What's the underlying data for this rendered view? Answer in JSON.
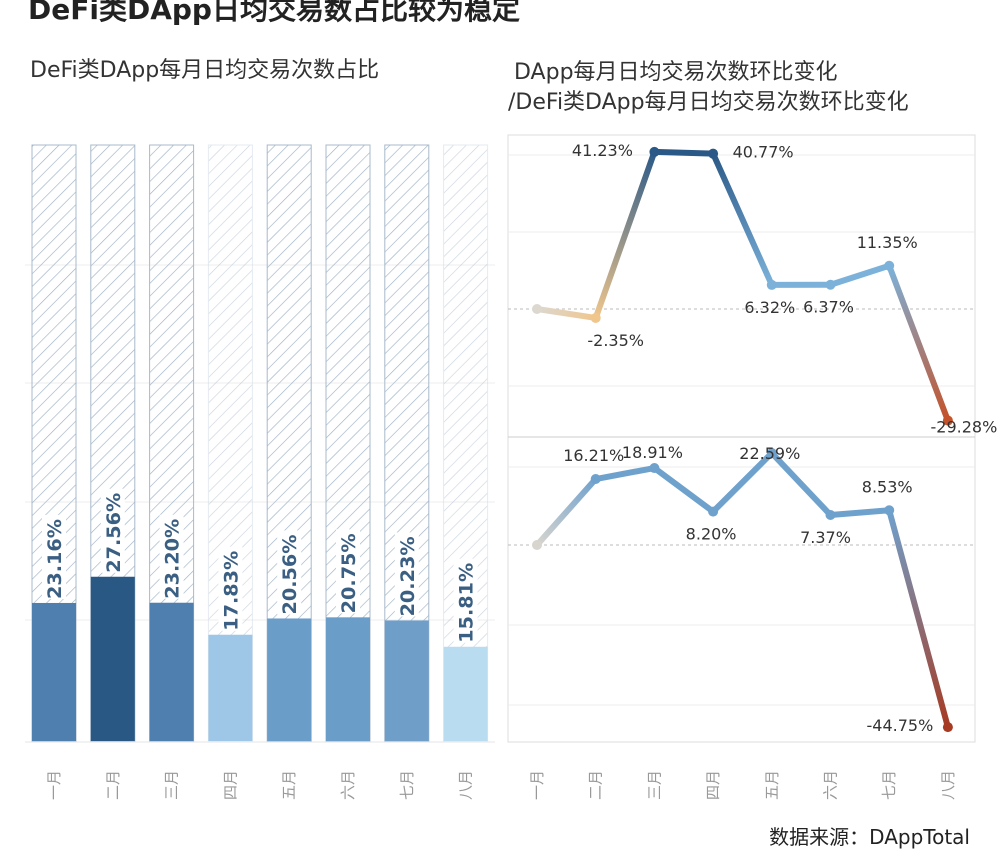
{
  "title": "DeFi类DApp日均交易数占比较为稳定",
  "source": "数据来源：DAppTotal",
  "chart_data": [
    {
      "type": "bar",
      "title": "DeFi类DApp每月日均交易次数占比",
      "categories": [
        "一月",
        "二月",
        "三月",
        "四月",
        "五月",
        "六月",
        "七月",
        "八月"
      ],
      "values": [
        23.16,
        27.56,
        23.2,
        17.83,
        20.56,
        20.75,
        20.23,
        15.81
      ],
      "labels": [
        "23.16%",
        "27.56%",
        "23.20%",
        "17.83%",
        "20.56%",
        "20.75%",
        "20.23%",
        "15.81%"
      ],
      "colors": [
        "#4f7fae",
        "#2a5885",
        "#4f7fae",
        "#9ec6e6",
        "#6a9dc8",
        "#6a9dc8",
        "#6f9fc9",
        "#b9dcf0"
      ],
      "ylim": [
        0,
        100
      ],
      "unit": "%"
    },
    {
      "type": "line",
      "title_lines": [
        "DApp每月日均交易次数环比变化",
        "/DeFi类DApp每月日均交易次数环比变化"
      ],
      "categories": [
        "一月",
        "二月",
        "三月",
        "四月",
        "五月",
        "六月",
        "七月",
        "八月"
      ],
      "series": [
        {
          "name": "DApp每月日均交易次数环比变化",
          "values": [
            0,
            -2.35,
            41.23,
            40.77,
            6.32,
            6.37,
            11.35,
            -29.28
          ],
          "labels": [
            "",
            "-2.35%",
            "41.23%",
            "40.77%",
            "6.32%",
            "6.37%",
            "11.35%",
            "-29.28%"
          ],
          "colors": [
            "#dcd8d0",
            "#f0c68c",
            "#2b5987",
            "#2b5987",
            "#7cb2da",
            "#7cb2da",
            "#7cb2da",
            "#c4522a"
          ],
          "ylim": [
            -36,
            46
          ]
        },
        {
          "name": "DeFi类DApp每月日均交易次数环比变化",
          "values": [
            0,
            16.21,
            18.91,
            8.2,
            22.59,
            7.37,
            8.53,
            -44.75
          ],
          "labels": [
            "",
            "16.21%",
            "18.91%",
            "8.20%",
            "22.59%",
            "7.37%",
            "8.53%",
            "-44.75%"
          ],
          "colors": [
            "#d8d5cf",
            "#6fa1cd",
            "#6fa1cd",
            "#6fa1cd",
            "#6fa1cd",
            "#6fa1cd",
            "#6fa1cd",
            "#a63a22"
          ],
          "ylim": [
            -48,
            26
          ]
        }
      ]
    }
  ]
}
